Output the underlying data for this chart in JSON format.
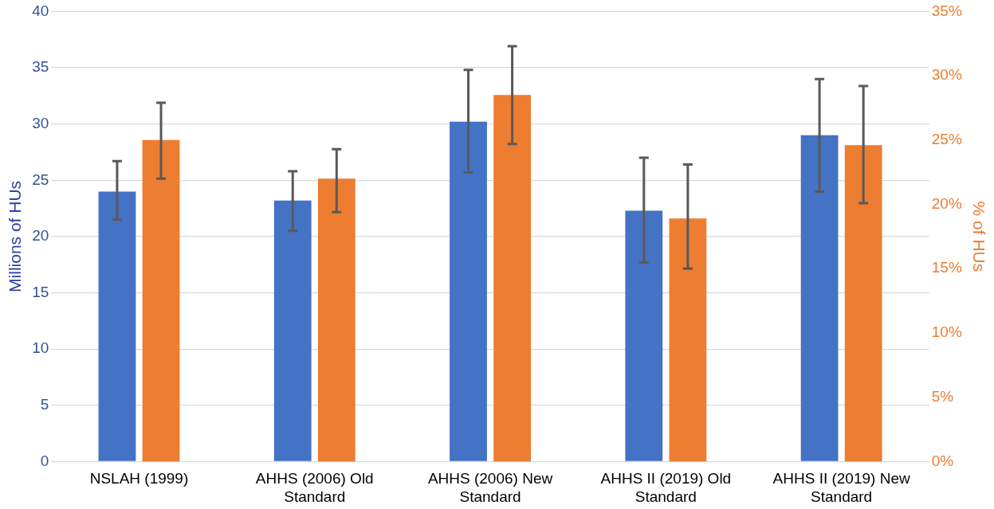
{
  "chart_data": {
    "type": "bar",
    "ylabel": "Millions of HUs",
    "y2label": "% of HUs",
    "categories": [
      [
        "NSLAH (1999)"
      ],
      [
        "AHHS (2006) Old",
        "Standard"
      ],
      [
        "AHHS (2006) New",
        "Standard"
      ],
      [
        "AHHS II (2019) Old",
        "Standard"
      ],
      [
        "AHHS II (2019) New",
        "Standard"
      ]
    ],
    "series": [
      {
        "color": "#4472c4",
        "values": [
          24.0,
          23.2,
          30.2,
          22.3,
          29.0
        ],
        "errors": [
          [
            21.5,
            26.7
          ],
          [
            20.5,
            25.8
          ],
          [
            25.7,
            34.8
          ],
          [
            17.7,
            27.0
          ],
          [
            24.0,
            34.0
          ]
        ]
      },
      {
        "color": "#ed7d31",
        "axis": "y2",
        "values": [
          25.0,
          22.0,
          28.5,
          18.9,
          24.6
        ],
        "errors": [
          [
            22.0,
            27.9
          ],
          [
            19.4,
            24.3
          ],
          [
            24.7,
            32.3
          ],
          [
            15.0,
            23.1
          ],
          [
            20.1,
            29.2
          ]
        ]
      }
    ],
    "ylim": [
      0,
      40
    ],
    "yticks": [
      0,
      5,
      10,
      15,
      20,
      25,
      30,
      35,
      40
    ],
    "y2lim": [
      0,
      35
    ],
    "y2ticks": [
      {
        "value": 0,
        "label": "0%"
      },
      {
        "value": 5,
        "label": "5%"
      },
      {
        "value": 10,
        "label": "10%"
      },
      {
        "value": 15,
        "label": "15%"
      },
      {
        "value": 20,
        "label": "20%"
      },
      {
        "value": 25,
        "label": "25%"
      },
      {
        "value": 30,
        "label": "30%"
      },
      {
        "value": 35,
        "label": "35%"
      }
    ],
    "grid": "y",
    "legend": false
  }
}
